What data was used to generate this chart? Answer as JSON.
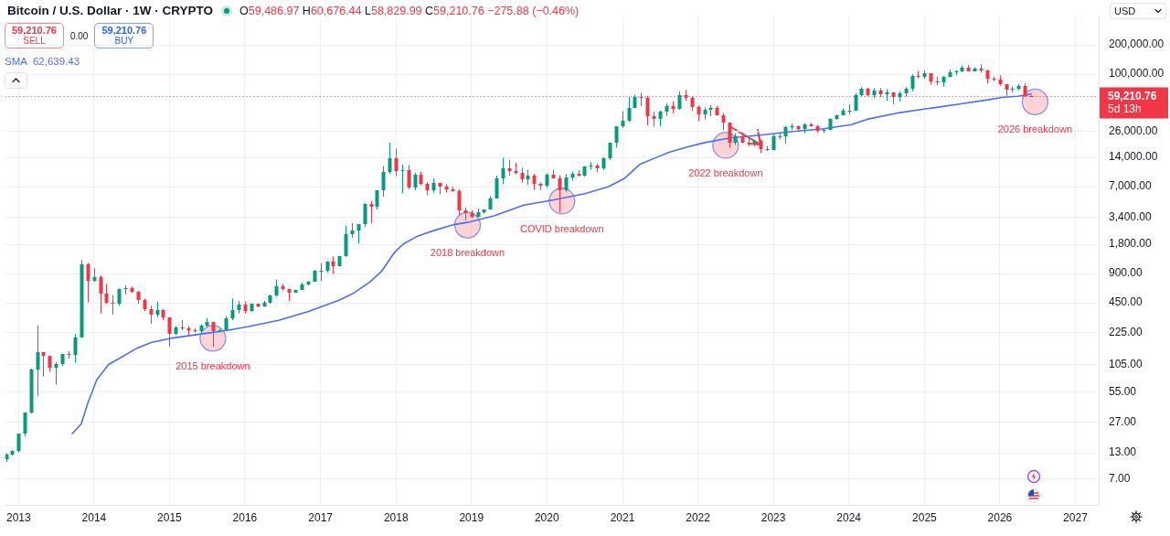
{
  "chart_data": {
    "type": "candlestick",
    "title": "Bitcoin / U.S. Dollar · 1W · CRYPTO",
    "subtitle": "O59,486.97 H60,676.44 L58,829.99 C59,210.76 −275.88 (−0.46%)",
    "ylabel": "USD",
    "x": [
      "2012-11",
      "2012-12",
      "2013-01",
      "2013-02",
      "2013-03",
      "2013-04",
      "2013-05",
      "2013-06",
      "2013-07",
      "2013-08",
      "2013-09",
      "2013-10",
      "2013-11",
      "2013-12",
      "2014-01",
      "2014-02",
      "2014-03",
      "2014-04",
      "2014-05",
      "2014-06",
      "2014-07",
      "2014-08",
      "2014-09",
      "2014-10",
      "2014-11",
      "2014-12",
      "2015-01",
      "2015-02",
      "2015-03",
      "2015-04",
      "2015-05",
      "2015-06",
      "2015-07",
      "2015-08",
      "2015-09",
      "2015-10",
      "2015-11",
      "2015-12",
      "2016-01",
      "2016-02",
      "2016-03",
      "2016-04",
      "2016-05",
      "2016-06",
      "2016-07",
      "2016-08",
      "2016-09",
      "2016-10",
      "2016-11",
      "2016-12",
      "2017-01",
      "2017-02",
      "2017-03",
      "2017-04",
      "2017-05",
      "2017-06",
      "2017-07",
      "2017-08",
      "2017-09",
      "2017-10",
      "2017-11",
      "2017-12",
      "2018-01",
      "2018-02",
      "2018-03",
      "2018-04",
      "2018-05",
      "2018-06",
      "2018-07",
      "2018-08",
      "2018-09",
      "2018-10",
      "2018-11",
      "2018-12",
      "2019-01",
      "2019-02",
      "2019-03",
      "2019-04",
      "2019-05",
      "2019-06",
      "2019-07",
      "2019-08",
      "2019-09",
      "2019-10",
      "2019-11",
      "2019-12",
      "2020-01",
      "2020-02",
      "2020-03",
      "2020-04",
      "2020-05",
      "2020-06",
      "2020-07",
      "2020-08",
      "2020-09",
      "2020-10",
      "2020-11",
      "2020-12",
      "2021-01",
      "2021-02",
      "2021-03",
      "2021-04",
      "2021-05",
      "2021-06",
      "2021-07",
      "2021-08",
      "2021-09",
      "2021-10",
      "2021-11",
      "2021-12",
      "2022-01",
      "2022-02",
      "2022-03",
      "2022-04",
      "2022-05",
      "2022-06",
      "2022-07",
      "2022-08",
      "2022-09",
      "2022-10",
      "2022-11",
      "2022-12",
      "2023-01",
      "2023-02",
      "2023-03",
      "2023-04",
      "2023-05",
      "2023-06",
      "2023-07",
      "2023-08",
      "2023-09",
      "2023-10",
      "2023-11",
      "2023-12",
      "2024-01",
      "2024-02",
      "2024-03",
      "2024-04",
      "2024-05",
      "2024-06",
      "2024-07",
      "2024-08",
      "2024-09",
      "2024-10",
      "2024-11",
      "2024-12",
      "2025-01",
      "2025-02",
      "2025-03",
      "2025-04",
      "2025-05",
      "2025-06",
      "2025-07",
      "2025-08",
      "2025-09",
      "2025-10",
      "2025-11",
      "2025-12",
      "2026-01",
      "2026-02",
      "2026-03",
      "2026-04",
      "2026-05",
      "2026-06"
    ],
    "ohlc": [
      [
        11.2,
        12.9,
        10.5,
        12.5
      ],
      [
        12.5,
        13.8,
        12.2,
        13.5
      ],
      [
        13.5,
        20.4,
        13.2,
        20.4
      ],
      [
        20.4,
        33.4,
        19.1,
        33.4
      ],
      [
        33.4,
        95,
        33,
        93
      ],
      [
        93,
        266,
        50,
        139
      ],
      [
        139,
        140,
        79,
        129
      ],
      [
        129,
        129,
        88,
        97
      ],
      [
        97,
        110,
        65,
        106
      ],
      [
        106,
        135,
        101,
        135
      ],
      [
        135,
        144,
        120,
        133
      ],
      [
        133,
        216,
        109,
        198
      ],
      [
        198,
        1242,
        197,
        1130
      ],
      [
        1130,
        1163,
        455,
        754
      ],
      [
        754,
        1020,
        740,
        830
      ],
      [
        830,
        860,
        350,
        565
      ],
      [
        565,
        700,
        440,
        450
      ],
      [
        450,
        540,
        340,
        445
      ],
      [
        445,
        630,
        420,
        630
      ],
      [
        630,
        680,
        550,
        640
      ],
      [
        640,
        660,
        570,
        585
      ],
      [
        585,
        600,
        440,
        480
      ],
      [
        480,
        500,
        370,
        386
      ],
      [
        386,
        420,
        275,
        338
      ],
      [
        338,
        460,
        320,
        378
      ],
      [
        378,
        385,
        300,
        320
      ],
      [
        320,
        320,
        160,
        218
      ],
      [
        218,
        260,
        210,
        254
      ],
      [
        254,
        300,
        235,
        244
      ],
      [
        244,
        260,
        210,
        236
      ],
      [
        236,
        247,
        225,
        230
      ],
      [
        230,
        270,
        220,
        263
      ],
      [
        263,
        315,
        255,
        284
      ],
      [
        284,
        285,
        160,
        230
      ],
      [
        230,
        245,
        225,
        236
      ],
      [
        236,
        330,
        235,
        314
      ],
      [
        314,
        500,
        300,
        377
      ],
      [
        377,
        470,
        350,
        430
      ],
      [
        430,
        465,
        350,
        368
      ],
      [
        368,
        445,
        365,
        437
      ],
      [
        437,
        440,
        405,
        416
      ],
      [
        416,
        470,
        410,
        448
      ],
      [
        448,
        550,
        440,
        531
      ],
      [
        531,
        780,
        520,
        673
      ],
      [
        673,
        705,
        600,
        624
      ],
      [
        624,
        630,
        470,
        575
      ],
      [
        575,
        615,
        570,
        609
      ],
      [
        609,
        730,
        605,
        700
      ],
      [
        700,
        755,
        680,
        742
      ],
      [
        742,
        980,
        740,
        963
      ],
      [
        963,
        1150,
        750,
        970
      ],
      [
        970,
        1210,
        920,
        1190
      ],
      [
        1190,
        1350,
        890,
        1080
      ],
      [
        1080,
        1350,
        1060,
        1350
      ],
      [
        1350,
        2800,
        1340,
        2300
      ],
      [
        2300,
        2980,
        2100,
        2480
      ],
      [
        2480,
        2900,
        1830,
        2875
      ],
      [
        2875,
        4750,
        2700,
        4700
      ],
      [
        4700,
        5000,
        2970,
        4340
      ],
      [
        4340,
        6470,
        4100,
        6470
      ],
      [
        6470,
        11400,
        5500,
        9950
      ],
      [
        9950,
        19800,
        9500,
        13860
      ],
      [
        13860,
        17200,
        9000,
        10200
      ],
      [
        10200,
        11800,
        6000,
        10330
      ],
      [
        10330,
        11700,
        6600,
        6930
      ],
      [
        6930,
        9750,
        6450,
        9240
      ],
      [
        9240,
        10000,
        7200,
        7490
      ],
      [
        7490,
        7770,
        5750,
        6390
      ],
      [
        6390,
        8500,
        6070,
        7730
      ],
      [
        7730,
        7750,
        5880,
        7030
      ],
      [
        7030,
        7400,
        6100,
        6630
      ],
      [
        6630,
        7000,
        6200,
        6370
      ],
      [
        6370,
        6560,
        3600,
        4020
      ],
      [
        4020,
        4300,
        3150,
        3740
      ],
      [
        3740,
        4000,
        3350,
        3460
      ],
      [
        3460,
        4200,
        3400,
        3850
      ],
      [
        3850,
        4100,
        3700,
        4100
      ],
      [
        4100,
        5600,
        4100,
        5350
      ],
      [
        5350,
        9100,
        5300,
        8570
      ],
      [
        8570,
        13900,
        7500,
        10800
      ],
      [
        10800,
        13200,
        9100,
        10080
      ],
      [
        10080,
        12300,
        9400,
        9630
      ],
      [
        9630,
        10950,
        7700,
        8300
      ],
      [
        8300,
        10500,
        7300,
        9200
      ],
      [
        9200,
        9500,
        6500,
        7570
      ],
      [
        7570,
        7750,
        6450,
        7190
      ],
      [
        7190,
        9600,
        6860,
        9350
      ],
      [
        9350,
        10500,
        8500,
        8600
      ],
      [
        8600,
        9200,
        3800,
        6440
      ],
      [
        6440,
        9460,
        6150,
        8630
      ],
      [
        8630,
        10070,
        8100,
        9460
      ],
      [
        9460,
        10400,
        8900,
        9140
      ],
      [
        9140,
        11450,
        8900,
        11350
      ],
      [
        11350,
        12480,
        10500,
        11650
      ],
      [
        11650,
        12100,
        9850,
        10780
      ],
      [
        10780,
        14100,
        10400,
        13800
      ],
      [
        13800,
        19900,
        13200,
        19700
      ],
      [
        19700,
        29300,
        17600,
        29000
      ],
      [
        29000,
        41950,
        28100,
        33100
      ],
      [
        33100,
        58350,
        32300,
        45200
      ],
      [
        45200,
        61800,
        45000,
        58900
      ],
      [
        58900,
        64850,
        47000,
        57700
      ],
      [
        57700,
        59500,
        30000,
        37300
      ],
      [
        37300,
        41300,
        28800,
        35000
      ],
      [
        35000,
        42400,
        29300,
        41500
      ],
      [
        41500,
        50500,
        37300,
        47100
      ],
      [
        47100,
        52900,
        39600,
        43800
      ],
      [
        43800,
        67000,
        43300,
        61300
      ],
      [
        61300,
        69000,
        53250,
        57000
      ],
      [
        57000,
        59100,
        42000,
        46300
      ],
      [
        46300,
        47900,
        33000,
        38500
      ],
      [
        38500,
        45800,
        34300,
        43200
      ],
      [
        43200,
        48200,
        37200,
        45500
      ],
      [
        45500,
        47400,
        37600,
        37700
      ],
      [
        37700,
        40000,
        26700,
        31800
      ],
      [
        31800,
        31900,
        17600,
        19800
      ],
      [
        19800,
        24650,
        18800,
        23300
      ],
      [
        23300,
        25200,
        19600,
        20000
      ],
      [
        20000,
        22800,
        18150,
        19400
      ],
      [
        19400,
        21000,
        18200,
        20500
      ],
      [
        20500,
        21450,
        15500,
        17200
      ],
      [
        17200,
        18400,
        16300,
        16550
      ],
      [
        16550,
        23950,
        16500,
        23100
      ],
      [
        23100,
        25250,
        21400,
        23150
      ],
      [
        23150,
        29200,
        19550,
        28500
      ],
      [
        28500,
        31000,
        26950,
        29300
      ],
      [
        29300,
        29850,
        25800,
        27200
      ],
      [
        27200,
        31400,
        24800,
        30500
      ],
      [
        30500,
        31800,
        28850,
        29200
      ],
      [
        29200,
        30200,
        25150,
        26000
      ],
      [
        26000,
        27500,
        24900,
        27000
      ],
      [
        27000,
        35200,
        26550,
        34500
      ],
      [
        34500,
        38450,
        34100,
        37700
      ],
      [
        37700,
        44700,
        37600,
        42300
      ],
      [
        42300,
        49000,
        38550,
        42600
      ],
      [
        42600,
        64000,
        41850,
        61200
      ],
      [
        61200,
        73800,
        59000,
        71300
      ],
      [
        71300,
        72800,
        59600,
        60700
      ],
      [
        60700,
        71950,
        56550,
        67500
      ],
      [
        67500,
        72000,
        58400,
        62700
      ],
      [
        62700,
        70000,
        53500,
        64600
      ],
      [
        64600,
        65100,
        49000,
        59000
      ],
      [
        59000,
        66500,
        52550,
        63300
      ],
      [
        63300,
        73600,
        58900,
        70300
      ],
      [
        70300,
        99800,
        66800,
        96400
      ],
      [
        96400,
        108300,
        90500,
        93400
      ],
      [
        93400,
        109600,
        89200,
        102400
      ],
      [
        102400,
        102500,
        78200,
        84300
      ],
      [
        84300,
        95000,
        76600,
        82500
      ],
      [
        82500,
        95800,
        74400,
        94200
      ],
      [
        94200,
        111900,
        93300,
        104600
      ],
      [
        104600,
        110400,
        98200,
        107100
      ],
      [
        107100,
        123200,
        105100,
        115800
      ],
      [
        115800,
        124400,
        107300,
        108200
      ],
      [
        108200,
        117900,
        107300,
        114000
      ],
      [
        114000,
        126200,
        103500,
        109600
      ],
      [
        109600,
        111200,
        80600,
        90400
      ],
      [
        90400,
        94600,
        84500,
        87600
      ],
      [
        87600,
        97500,
        76000,
        78600
      ],
      [
        78600,
        79500,
        60000,
        69000
      ],
      [
        69000,
        74500,
        65000,
        71000
      ],
      [
        71000,
        79000,
        68000,
        76500
      ],
      [
        76500,
        80500,
        58500,
        59500
      ],
      [
        59486.97,
        60676.44,
        58829.99,
        59210.76
      ]
    ],
    "colors": [
      "#089981",
      "#089981",
      "#089981",
      "#089981",
      "#089981",
      "#089981",
      "#f23645",
      "#f23645",
      "#089981",
      "#089981",
      "#f23645",
      "#089981",
      "#089981",
      "#f23645",
      "#089981",
      "#f23645",
      "#f23645",
      "#f23645",
      "#089981",
      "#089981",
      "#f23645",
      "#f23645",
      "#f23645",
      "#f23645",
      "#089981",
      "#f23645",
      "#f23645",
      "#089981",
      "#f23645",
      "#f23645",
      "#f23645",
      "#089981",
      "#089981",
      "#f23645",
      "#089981",
      "#089981",
      "#089981",
      "#089981",
      "#f23645",
      "#089981",
      "#f23645",
      "#089981",
      "#089981",
      "#089981",
      "#f23645",
      "#f23645",
      "#089981",
      "#089981",
      "#089981",
      "#089981",
      "#089981",
      "#089981",
      "#f23645",
      "#089981",
      "#089981",
      "#089981",
      "#089981",
      "#089981",
      "#f23645",
      "#089981",
      "#089981",
      "#089981",
      "#f23645",
      "#089981",
      "#f23645",
      "#089981",
      "#f23645",
      "#f23645",
      "#089981",
      "#f23645",
      "#f23645",
      "#f23645",
      "#f23645",
      "#f23645",
      "#f23645",
      "#089981",
      "#089981",
      "#089981",
      "#089981",
      "#089981",
      "#f23645",
      "#f23645",
      "#f23645",
      "#089981",
      "#f23645",
      "#f23645",
      "#089981",
      "#f23645",
      "#f23645",
      "#089981",
      "#089981",
      "#f23645",
      "#089981",
      "#089981",
      "#f23645",
      "#089981",
      "#089981",
      "#089981",
      "#089981",
      "#089981",
      "#089981",
      "#f23645",
      "#f23645",
      "#f23645",
      "#089981",
      "#089981",
      "#f23645",
      "#089981",
      "#f23645",
      "#f23645",
      "#f23645",
      "#089981",
      "#089981",
      "#f23645",
      "#f23645",
      "#f23645",
      "#089981",
      "#f23645",
      "#f23645",
      "#089981",
      "#f23645",
      "#f23645",
      "#089981",
      "#089981",
      "#089981",
      "#089981",
      "#f23645",
      "#089981",
      "#f23645",
      "#f23645",
      "#089981",
      "#089981",
      "#089981",
      "#089981",
      "#089981",
      "#089981",
      "#089981",
      "#f23645",
      "#089981",
      "#f23645",
      "#089981",
      "#f23645",
      "#089981",
      "#089981",
      "#089981",
      "#f23645",
      "#089981",
      "#f23645",
      "#f23645",
      "#089981",
      "#089981",
      "#089981",
      "#089981",
      "#f23645",
      "#089981",
      "#f23645",
      "#f23645",
      "#f23645",
      "#f23645",
      "#f23645",
      "#089981",
      "#089981",
      "#f23645",
      "#f23645"
    ],
    "series": [
      {
        "name": "SMA",
        "type": "line",
        "color": "#4d6fea",
        "x": [
          "2013-09-17",
          "2013-10-31",
          "2013-12-01",
          "2014-01-14",
          "2014-03-12",
          "2014-05-12",
          "2014-07-22",
          "2014-10-04",
          "2015-01-14",
          "2015-06-13",
          "2015-09-22",
          "2016-01-18",
          "2016-06-12",
          "2016-11-04",
          "2017-04-03",
          "2017-06-12",
          "2017-08-26",
          "2017-10-22",
          "2017-12-22",
          "2018-02-04",
          "2018-04-15",
          "2018-06-29",
          "2018-10-08",
          "2018-12-22",
          "2019-04-20",
          "2019-09-12",
          "2020-02-04",
          "2020-07-03",
          "2020-10-26",
          "2021-01-09",
          "2021-03-25",
          "2021-06-03",
          "2021-08-17",
          "2021-11-13",
          "2022-02-09",
          "2022-06-08",
          "2022-10-30",
          "2023-03-26",
          "2023-08-22",
          "2024-01-14",
          "2024-03-29",
          "2024-08-21",
          "2025-01-14",
          "2025-06-12",
          "2025-11-04",
          "2026-01-18",
          "2026-03-28",
          "2026-06-01"
        ],
        "values": [
          20.4,
          25.7,
          41.6,
          73,
          105,
          124,
          152,
          176,
          196,
          217,
          232,
          257,
          298,
          367,
          482,
          570,
          733,
          942,
          1460,
          1800,
          2180,
          2470,
          2860,
          3040,
          3520,
          4530,
          5130,
          5940,
          7020,
          8480,
          11850,
          13700,
          15900,
          18000,
          20000,
          22200,
          23700,
          25700,
          27400,
          30400,
          34500,
          39900,
          44300,
          49200,
          54600,
          58200,
          59400,
          62639.43
        ]
      }
    ],
    "xlim": [
      "2012-10-28",
      "2027-04-24"
    ],
    "xticks": [
      "2013",
      "2014",
      "2015",
      "2016",
      "2017",
      "2018",
      "2019",
      "2020",
      "2021",
      "2022",
      "2023",
      "2024",
      "2025",
      "2026",
      "2027"
    ],
    "ylim": [
      3.8,
      390000
    ],
    "yticks": [
      {
        "value": 7,
        "label": "7.00"
      },
      {
        "value": 13,
        "label": "13.00"
      },
      {
        "value": 27,
        "label": "27.00"
      },
      {
        "value": 55,
        "label": "55.00"
      },
      {
        "value": 105,
        "label": "105.00"
      },
      {
        "value": 225,
        "label": "225.00"
      },
      {
        "value": 450,
        "label": "450.00"
      },
      {
        "value": 900,
        "label": "900.00"
      },
      {
        "value": 1800,
        "label": "1,800.00"
      },
      {
        "value": 3400,
        "label": "3,400.00"
      },
      {
        "value": 7000,
        "label": "7,000.00"
      },
      {
        "value": 14000,
        "label": "14,000.00"
      },
      {
        "value": 26000,
        "label": "26,000.00"
      },
      {
        "value": 100000,
        "label": "100,000.00"
      },
      {
        "value": 200000,
        "label": "200,000.00"
      }
    ],
    "log": "y",
    "grid": true,
    "legend": "top left",
    "ref_lines": [
      {
        "axis": "y",
        "value": 59210.76,
        "label": "59,210.76\n5d 13h",
        "color": "#f23645",
        "line_style": "dotted"
      }
    ],
    "annotations": [
      "59,210.76\nSELL",
      "0.00",
      "59,210.76\nBUY",
      "62,639.43",
      {
        "text": "2015 breakdown",
        "x": "2015-07-30",
        "y": 195
      },
      {
        "text": "2018 breakdown",
        "x": "2018-12-13",
        "y": 2830
      },
      {
        "text": "COVID breakdown",
        "x": "2020-03-14",
        "y": 5000
      },
      {
        "text": "2022 breakdown",
        "x": "2022-05-15",
        "y": 18600
      },
      {
        "text": "2026 breakdown",
        "x": "2026-06-20",
        "y": 52000
      }
    ]
  }
}
